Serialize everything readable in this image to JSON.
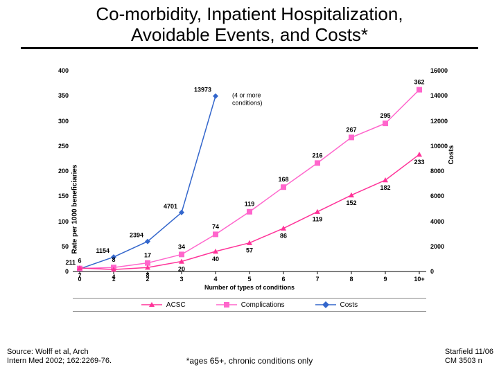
{
  "title_line1": "Co-morbidity, Inpatient Hospitalization,",
  "title_line2": "Avoidable Events, and Costs*",
  "source_line1": "Source: Wolff et al, Arch",
  "source_line2": "Intern Med 2002; 162:2269-76.",
  "footnote": "*ages 65+, chronic conditions only",
  "stamp_line1": "Starfield 11/06",
  "stamp_line2": "CM 3503 n",
  "chart": {
    "xaxis": {
      "label": "Number of types of conditions",
      "ticks": [
        "0",
        "1",
        "2",
        "3",
        "4",
        "5",
        "6",
        "7",
        "8",
        "9",
        "10+"
      ]
    },
    "y_left": {
      "label": "Rate per 1000 beneficiaries",
      "min": 0,
      "max": 400,
      "step": 50
    },
    "y_right": {
      "label": "Costs",
      "min": 0,
      "max": 16000,
      "step": 2000
    },
    "annot_4plus": "(4 or more\nconditions)",
    "series": {
      "acsc": {
        "label": "ACSC",
        "color": "#ff3399",
        "marker": "triangle",
        "y": [
          7,
          4,
          8,
          20,
          40,
          57,
          86,
          119,
          152,
          182,
          233
        ]
      },
      "complications": {
        "label": "Complications",
        "color": "#ff66cc",
        "marker": "square",
        "y": [
          6,
          8,
          17,
          34,
          74,
          119,
          168,
          216,
          267,
          295,
          362
        ]
      },
      "costs": {
        "label": "Costs",
        "color": "#3366cc",
        "marker": "diamond",
        "y": [
          211,
          1154,
          2394,
          4701,
          13973,
          null,
          null,
          null,
          null,
          null,
          null
        ]
      }
    },
    "legend": [
      "ACSC",
      "Complications",
      "Costs"
    ],
    "background_color": "#ffffff",
    "tick_fontsize": 9,
    "label_fontsize": 10
  }
}
